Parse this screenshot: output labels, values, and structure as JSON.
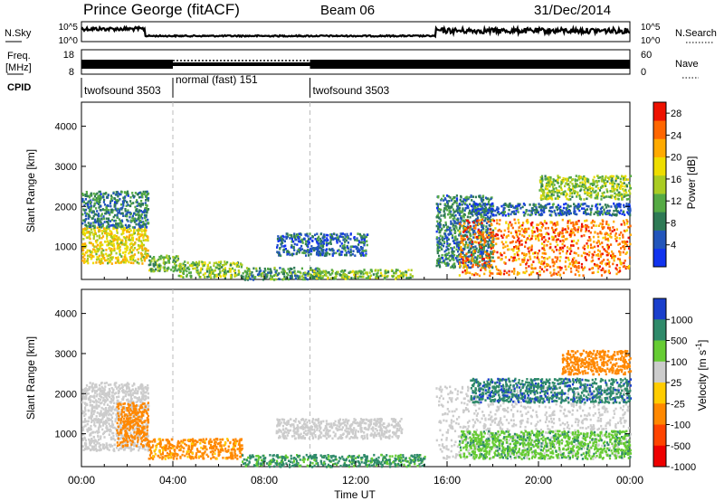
{
  "header": {
    "station": "Prince George (fitACF)",
    "beam": "Beam 06",
    "date": "31/Dec/2014"
  },
  "noise_panel": {
    "left_label": "N.Sky",
    "right_label": "N.Search",
    "left_ticks": [
      "10^5",
      "10^0"
    ],
    "right_ticks": [
      "10^5",
      "10^0"
    ]
  },
  "freq_panel": {
    "left_label_1": "Freq.",
    "left_label_2": "[MHz]",
    "right_label": "Nave",
    "left_ticks": [
      "18",
      "8"
    ],
    "right_ticks": [
      "60",
      "0"
    ]
  },
  "cpid": {
    "label": "CPID",
    "segments": [
      {
        "name": "twofsound 3503",
        "start_hour": 0,
        "end_hour": 4
      },
      {
        "name": "normal (fast) 151",
        "start_hour": 4,
        "end_hour": 10
      },
      {
        "name": "twofsound 3503",
        "start_hour": 10,
        "end_hour": 24
      }
    ]
  },
  "chart_data": [
    {
      "type": "heatmap",
      "title": "",
      "xlabel": "Time UT",
      "ylabel": "Slant Range [km]",
      "xlim": [
        0,
        24
      ],
      "ylim": [
        180,
        4600
      ],
      "x_ticks": [
        "00:00",
        "04:00",
        "08:00",
        "12:00",
        "16:00",
        "20:00",
        "00:00"
      ],
      "y_ticks": [
        1000,
        2000,
        3000,
        4000
      ],
      "colorbar": {
        "label": "Power [dB]",
        "ticks": [
          4,
          8,
          12,
          16,
          20,
          24,
          28
        ],
        "range": [
          0,
          30
        ],
        "colors": [
          "#1133ee",
          "#2255bb",
          "#2e7a55",
          "#55aa44",
          "#aacc22",
          "#eedd00",
          "#ffaa00",
          "#ff6600",
          "#ee1100"
        ]
      },
      "regions": [
        {
          "t": [
            0.0,
            2.9
          ],
          "r": [
            600,
            1500
          ],
          "value": 18
        },
        {
          "t": [
            0.0,
            2.9
          ],
          "r": [
            1500,
            2400
          ],
          "value": 8
        },
        {
          "t": [
            2.9,
            4.2
          ],
          "r": [
            400,
            800
          ],
          "value": 12
        },
        {
          "t": [
            4.2,
            7.0
          ],
          "r": [
            250,
            650
          ],
          "value": 14
        },
        {
          "t": [
            7.0,
            10.5
          ],
          "r": [
            200,
            500
          ],
          "value": 10
        },
        {
          "t": [
            8.5,
            12.5
          ],
          "r": [
            800,
            1350
          ],
          "value": 6
        },
        {
          "t": [
            10.0,
            14.5
          ],
          "r": [
            220,
            450
          ],
          "value": 14
        },
        {
          "t": [
            15.5,
            18.0
          ],
          "r": [
            500,
            2300
          ],
          "value": 8
        },
        {
          "t": [
            16.5,
            24.0
          ],
          "r": [
            300,
            1700
          ],
          "value": 24
        },
        {
          "t": [
            17.0,
            24.0
          ],
          "r": [
            1800,
            2100
          ],
          "value": 6
        },
        {
          "t": [
            20.0,
            24.0
          ],
          "r": [
            2200,
            2800
          ],
          "value": 14
        }
      ]
    },
    {
      "type": "heatmap",
      "title": "",
      "xlabel": "Time UT",
      "ylabel": "Slant Range [km]",
      "xlim": [
        0,
        24
      ],
      "ylim": [
        180,
        4600
      ],
      "x_ticks": [
        "00:00",
        "04:00",
        "08:00",
        "12:00",
        "16:00",
        "20:00",
        "00:00"
      ],
      "y_ticks": [
        1000,
        2000,
        3000,
        4000
      ],
      "colorbar": {
        "label": "Velocity [m s^-1]",
        "ticks": [
          1000,
          500,
          100,
          25,
          -25,
          -100,
          -500,
          -1000
        ],
        "range": [
          -1000,
          1000
        ],
        "colors": [
          "#1a3fcc",
          "#2f8a6a",
          "#66cc33",
          "#cccccc",
          "#ffcc00",
          "#ff8800",
          "#ff4400",
          "#ee0000"
        ]
      },
      "regions": [
        {
          "t": [
            0.0,
            2.9
          ],
          "r": [
            600,
            2300
          ],
          "value": 0
        },
        {
          "t": [
            1.5,
            2.9
          ],
          "r": [
            700,
            1800
          ],
          "value": -300
        },
        {
          "t": [
            2.9,
            7.0
          ],
          "r": [
            400,
            900
          ],
          "value": -150
        },
        {
          "t": [
            7.0,
            15.0
          ],
          "r": [
            200,
            500
          ],
          "value": 120
        },
        {
          "t": [
            8.5,
            14.0
          ],
          "r": [
            900,
            1400
          ],
          "value": 0
        },
        {
          "t": [
            15.5,
            24.0
          ],
          "r": [
            400,
            2200
          ],
          "value": 0
        },
        {
          "t": [
            16.5,
            24.0
          ],
          "r": [
            400,
            1100
          ],
          "value": 80
        },
        {
          "t": [
            17.0,
            24.0
          ],
          "r": [
            1800,
            2400
          ],
          "value": 400
        },
        {
          "t": [
            21.0,
            24.0
          ],
          "r": [
            2500,
            3100
          ],
          "value": -300
        }
      ]
    }
  ]
}
